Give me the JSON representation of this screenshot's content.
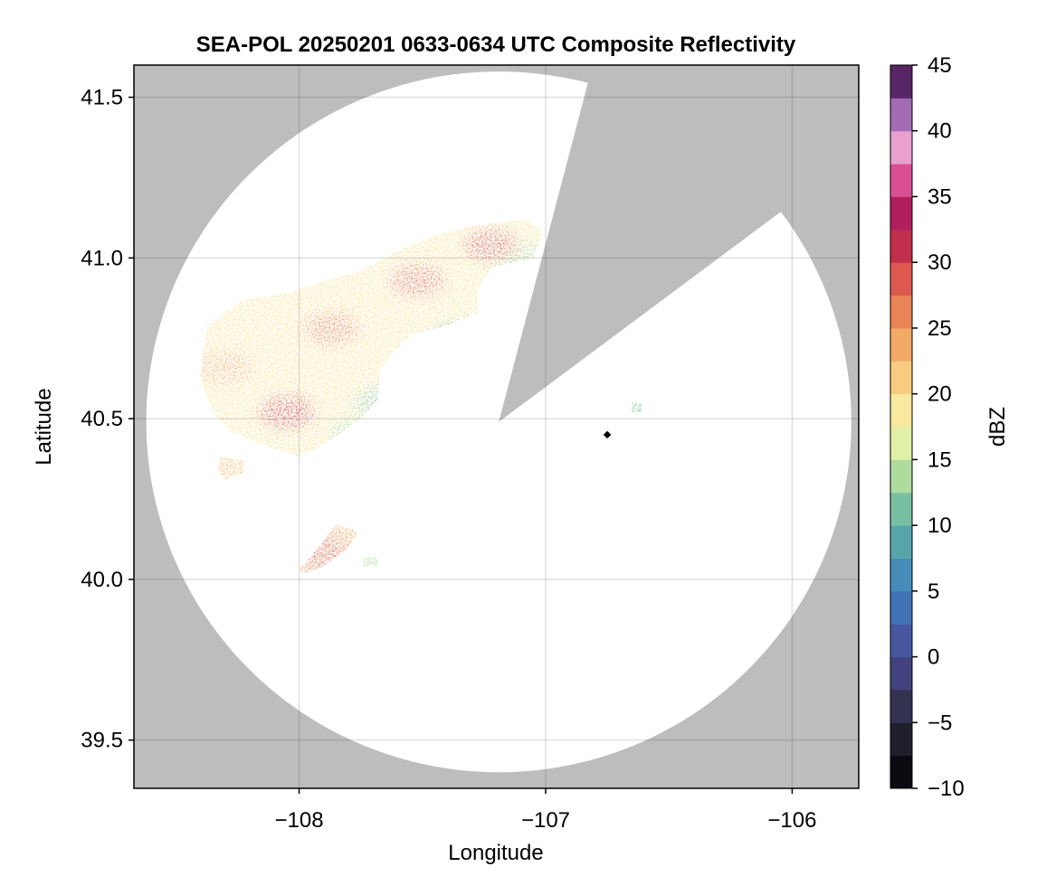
{
  "chart_data": {
    "type": "heatmap",
    "title": "SEA-POL 20250201 0633-0634 UTC Composite Reflectivity",
    "xlabel": "Longitude",
    "ylabel": "Latitude",
    "xlim": [
      -108.67,
      -105.73
    ],
    "ylim": [
      39.35,
      41.6
    ],
    "xticks": [
      -108,
      -107,
      -106
    ],
    "xtick_labels": [
      "−108",
      "−107",
      "−106"
    ],
    "yticks": [
      39.5,
      40.0,
      40.5,
      41.0,
      41.5
    ],
    "ytick_labels": [
      "39.5",
      "40.0",
      "40.5",
      "41.0",
      "41.5"
    ],
    "grid": true,
    "missing_color": "#bdbdbd",
    "radar": {
      "center_lon": -107.19,
      "center_lat": 40.49,
      "range_lon": 1.43,
      "range_lat": 1.09,
      "blocked_sector_lonlat": [
        [
          -106.83,
          41.54
        ],
        [
          -106.07,
          41.13
        ]
      ],
      "site_marker": {
        "lon": -106.75,
        "lat": 40.45
      }
    },
    "colorbar": {
      "label": "dBZ",
      "min": -10,
      "max": 45,
      "ticks": [
        -10,
        -5,
        0,
        5,
        10,
        15,
        20,
        25,
        30,
        35,
        40,
        45
      ],
      "tick_labels": [
        "−10",
        "−5",
        "0",
        "5",
        "10",
        "15",
        "20",
        "25",
        "30",
        "35",
        "40",
        "45"
      ],
      "stops": [
        {
          "v": -10,
          "c": "#000004"
        },
        {
          "v": -5,
          "c": "#2b2a3a"
        },
        {
          "v": 0,
          "c": "#4a4a94"
        },
        {
          "v": 5,
          "c": "#3d7fc0"
        },
        {
          "v": 10,
          "c": "#5fb2a4"
        },
        {
          "v": 15,
          "c": "#c8e89c"
        },
        {
          "v": 17.5,
          "c": "#f9f7b2"
        },
        {
          "v": 20,
          "c": "#f9db8c"
        },
        {
          "v": 25,
          "c": "#f19a5a"
        },
        {
          "v": 30,
          "c": "#d6434b"
        },
        {
          "v": 33,
          "c": "#a5114d"
        },
        {
          "v": 36,
          "c": "#d8478e"
        },
        {
          "v": 39,
          "c": "#eba8d6"
        },
        {
          "v": 42,
          "c": "#8a56a8"
        },
        {
          "v": 45,
          "c": "#350236"
        }
      ]
    },
    "echo_regions": [
      {
        "name": "main-band",
        "polygon": [
          [
            -108.37,
            40.79
          ],
          [
            -108.23,
            40.87
          ],
          [
            -108.05,
            40.89
          ],
          [
            -107.93,
            40.92
          ],
          [
            -107.75,
            40.96
          ],
          [
            -107.58,
            41.03
          ],
          [
            -107.45,
            41.07
          ],
          [
            -107.3,
            41.1
          ],
          [
            -107.08,
            41.12
          ],
          [
            -107.01,
            41.08
          ],
          [
            -107.05,
            41.0
          ],
          [
            -107.22,
            40.97
          ],
          [
            -107.28,
            40.9
          ],
          [
            -107.27,
            40.83
          ],
          [
            -107.4,
            40.79
          ],
          [
            -107.55,
            40.76
          ],
          [
            -107.67,
            40.66
          ],
          [
            -107.68,
            40.56
          ],
          [
            -107.75,
            40.5
          ],
          [
            -107.88,
            40.43
          ],
          [
            -108.0,
            40.38
          ],
          [
            -108.15,
            40.42
          ],
          [
            -108.28,
            40.46
          ],
          [
            -108.35,
            40.52
          ],
          [
            -108.4,
            40.63
          ],
          [
            -108.39,
            40.72
          ]
        ],
        "mean_dbz": 19
      },
      {
        "name": "western-fragment",
        "polygon": [
          [
            -108.32,
            40.38
          ],
          [
            -108.22,
            40.37
          ],
          [
            -108.23,
            40.33
          ],
          [
            -108.3,
            40.31
          ],
          [
            -108.33,
            40.34
          ]
        ],
        "mean_dbz": 21
      },
      {
        "name": "southern-cell",
        "polygon": [
          [
            -108.0,
            40.03
          ],
          [
            -107.92,
            40.1
          ],
          [
            -107.85,
            40.17
          ],
          [
            -107.76,
            40.15
          ],
          [
            -107.8,
            40.1
          ],
          [
            -107.9,
            40.04
          ],
          [
            -107.98,
            40.02
          ]
        ],
        "mean_dbz": 23
      },
      {
        "name": "small-southern-echo",
        "polygon": [
          [
            -107.74,
            40.07
          ],
          [
            -107.68,
            40.07
          ],
          [
            -107.68,
            40.04
          ],
          [
            -107.74,
            40.04
          ]
        ],
        "mean_dbz": 14
      },
      {
        "name": "eastern-echo",
        "polygon": [
          [
            -106.65,
            40.55
          ],
          [
            -106.61,
            40.55
          ],
          [
            -106.61,
            40.52
          ],
          [
            -106.65,
            40.52
          ]
        ],
        "mean_dbz": 12
      }
    ],
    "hotspots": [
      {
        "lon": -108.05,
        "lat": 40.52,
        "dbz": 29
      },
      {
        "lon": -107.87,
        "lat": 40.78,
        "dbz": 26
      },
      {
        "lon": -107.52,
        "lat": 40.93,
        "dbz": 27
      },
      {
        "lon": -107.22,
        "lat": 41.04,
        "dbz": 28
      },
      {
        "lon": -107.9,
        "lat": 40.08,
        "dbz": 28
      },
      {
        "lon": -108.3,
        "lat": 40.66,
        "dbz": 23
      },
      {
        "lon": -108.27,
        "lat": 40.35,
        "dbz": 22
      }
    ],
    "weak_edges": [
      {
        "lon": -107.35,
        "lat": 40.75,
        "dbz": 11
      },
      {
        "lon": -107.65,
        "lat": 40.55,
        "dbz": 12
      },
      {
        "lon": -107.75,
        "lat": 40.45,
        "dbz": 13
      },
      {
        "lon": -107.1,
        "lat": 41.0,
        "dbz": 14
      }
    ]
  }
}
